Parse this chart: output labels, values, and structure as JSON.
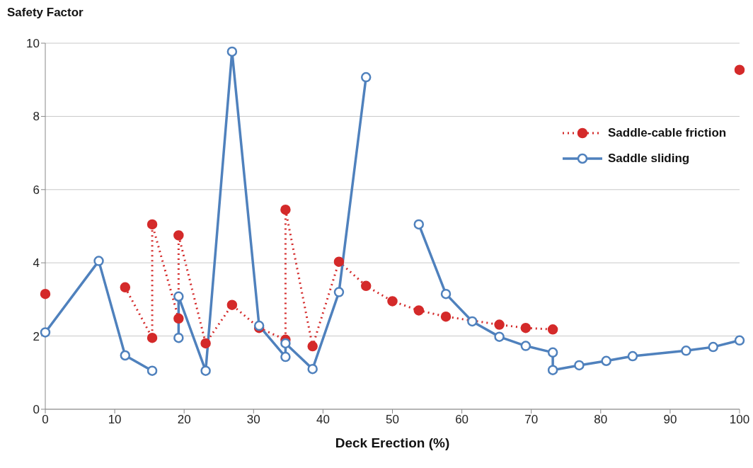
{
  "chart_data": {
    "type": "line",
    "ylabel": "Safety Factor",
    "xlabel": "Deck Erection (%)",
    "xlim": [
      0,
      100
    ],
    "xticks": [
      0,
      10,
      20,
      30,
      40,
      50,
      60,
      70,
      80,
      90,
      100
    ],
    "ylim": [
      0,
      10
    ],
    "yticks": [
      0,
      2,
      4,
      6,
      8,
      10
    ],
    "grid": "y",
    "legend": "right",
    "marker": "circle",
    "series": [
      {
        "name": "Saddle-cable friction",
        "color": "#d42a2a",
        "line_style": "dotted",
        "x": [
          0,
          7.7,
          11.5,
          15.4,
          15.4,
          19.2,
          19.2,
          23.1,
          26.9,
          30.8,
          34.6,
          34.6,
          38.5,
          42.3,
          46.2,
          50,
          53.8,
          57.7,
          65.4,
          69.2,
          73.1,
          76.9,
          100
        ],
        "values": [
          3.15,
          null,
          3.33,
          1.95,
          5.05,
          2.48,
          4.75,
          1.8,
          2.85,
          2.22,
          1.9,
          5.45,
          1.72,
          4.03,
          3.37,
          2.95,
          2.7,
          2.53,
          2.31,
          2.22,
          2.18,
          null,
          9.27
        ]
      },
      {
        "name": "Saddle sliding",
        "color": "#4f81bd",
        "line_style": "solid",
        "x": [
          0,
          7.7,
          11.5,
          15.4,
          17.3,
          19.2,
          19.2,
          23.1,
          26.9,
          30.8,
          34.6,
          34.6,
          38.5,
          42.3,
          46.2,
          50,
          53.8,
          57.7,
          61.5,
          65.4,
          69.2,
          73.1,
          73.1,
          76.9,
          80.8,
          84.6,
          92.3,
          96.2,
          100
        ],
        "values": [
          2.1,
          4.05,
          1.47,
          1.05,
          null,
          1.95,
          3.08,
          1.05,
          9.77,
          2.28,
          1.43,
          1.8,
          1.1,
          3.2,
          9.07,
          null,
          5.05,
          3.15,
          2.4,
          1.98,
          1.73,
          1.55,
          1.07,
          1.2,
          1.32,
          1.45,
          1.6,
          1.7,
          1.88
        ]
      }
    ]
  }
}
